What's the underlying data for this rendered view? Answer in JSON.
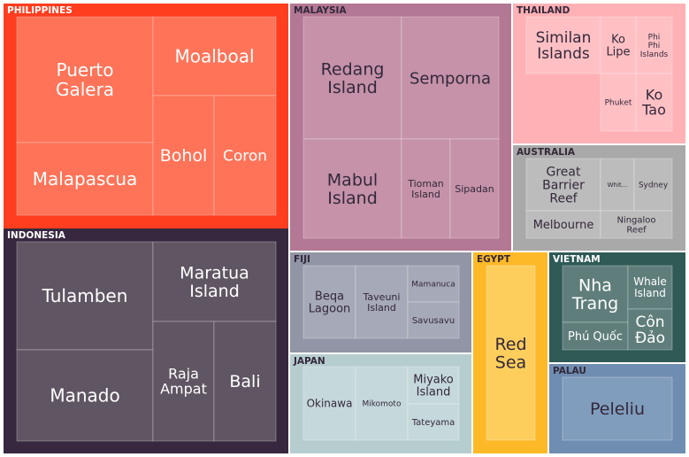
{
  "chart_data": {
    "type": "treemap",
    "title": "",
    "groups": [
      {
        "name": "PHILIPPINES",
        "color": "#ff3d1f",
        "leaf_color": "#ff7358",
        "text_color": "#ffffff",
        "items": [
          {
            "label": "Puerto Galera",
            "value": 5
          },
          {
            "label": "Malapascua",
            "value": 4.5
          },
          {
            "label": "Moalboal",
            "value": 5
          },
          {
            "label": "Bohol",
            "value": 2.5
          },
          {
            "label": "Coron",
            "value": 2.5
          }
        ]
      },
      {
        "name": "INDONESIA",
        "color": "#37283f",
        "leaf_color": "#605563",
        "text_color": "#ffffff",
        "items": [
          {
            "label": "Tulamben",
            "value": 5
          },
          {
            "label": "Manado",
            "value": 5
          },
          {
            "label": "Maratua Island",
            "value": 4.5
          },
          {
            "label": "Raja Ampat",
            "value": 2.8
          },
          {
            "label": "Bali",
            "value": 2.8
          }
        ]
      },
      {
        "name": "MALAYSIA",
        "color": "#b37894",
        "leaf_color": "#c592a9",
        "text_color": "#33283a",
        "items": [
          {
            "label": "Redang Island",
            "value": 4.5
          },
          {
            "label": "Semporna",
            "value": 4.5
          },
          {
            "label": "Mabul Island",
            "value": 4
          },
          {
            "label": "Tioman Island",
            "value": 2
          },
          {
            "label": "Sipadan",
            "value": 2
          }
        ]
      },
      {
        "name": "THAILAND",
        "color": "#ffb1b5",
        "leaf_color": "#ffc0c4",
        "text_color": "#33283a",
        "items": [
          {
            "label": "Similan Islands",
            "value": 4
          },
          {
            "label": "Ko Lipe",
            "value": 1
          },
          {
            "label": "Phi Phi Islands",
            "value": 1
          },
          {
            "label": "Phuket",
            "value": 1.2
          },
          {
            "label": "Ko Tao",
            "value": 1.2
          }
        ]
      },
      {
        "name": "AUSTRALIA",
        "color": "#a9a9a9",
        "leaf_color": "#bcbcbc",
        "text_color": "#33283a",
        "items": [
          {
            "label": "Great Barrier Reef",
            "value": 3
          },
          {
            "label": "Whitsundays",
            "display": "Whit...",
            "value": 1
          },
          {
            "label": "Sydney",
            "value": 1
          },
          {
            "label": "Melbourne",
            "value": 1.5
          },
          {
            "label": "Ningaloo Reef",
            "value": 1.6
          }
        ]
      },
      {
        "name": "FIJI",
        "color": "#9195a6",
        "leaf_color": "#a6a9b7",
        "text_color": "#33283a",
        "items": [
          {
            "label": "Beqa Lagoon",
            "value": 2
          },
          {
            "label": "Taveuni Island",
            "value": 2
          },
          {
            "label": "Mamanuca",
            "value": 1
          },
          {
            "label": "Savusavu",
            "value": 1
          }
        ]
      },
      {
        "name": "JAPAN",
        "color": "#b6cdd0",
        "leaf_color": "#c5d8db",
        "text_color": "#33283a",
        "items": [
          {
            "label": "Okinawa",
            "value": 2
          },
          {
            "label": "Mikomoto",
            "value": 2
          },
          {
            "label": "Miyako Island",
            "value": 1
          },
          {
            "label": "Tateyama",
            "value": 1
          }
        ]
      },
      {
        "name": "EGYPT",
        "color": "#fdb927",
        "leaf_color": "#fece5d",
        "text_color": "#33283a",
        "items": [
          {
            "label": "Red Sea",
            "value": 5
          }
        ]
      },
      {
        "name": "VIETNAM",
        "color": "#2f5a56",
        "leaf_color": "#5f7e7b",
        "text_color": "#ffffff",
        "items": [
          {
            "label": "Nha Trang",
            "value": 2.5
          },
          {
            "label": "Phú Quốc",
            "value": 1
          },
          {
            "label": "Whale Island",
            "value": 1
          },
          {
            "label": "Côn Đảo",
            "value": 1
          }
        ]
      },
      {
        "name": "PALAU",
        "color": "#6f8db1",
        "leaf_color": "#819dbd",
        "text_color": "#33283a",
        "items": [
          {
            "label": "Peleliu",
            "value": 3
          }
        ]
      }
    ]
  }
}
